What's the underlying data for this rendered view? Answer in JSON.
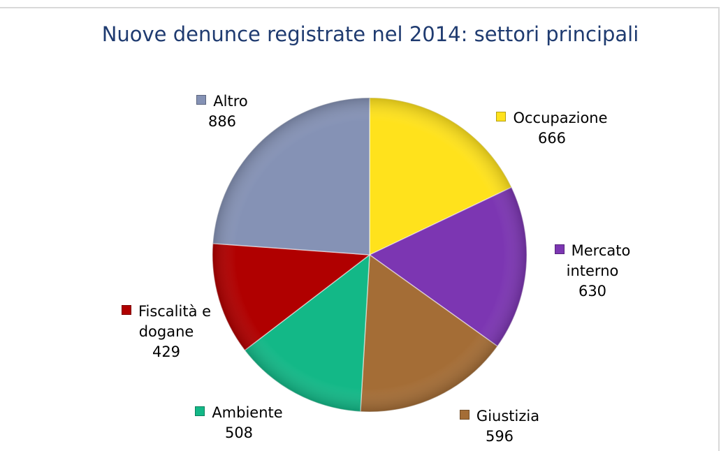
{
  "chart_data": {
    "type": "pie",
    "title": "Nuove denunce registrate nel 2014: settori principali",
    "categories": [
      "Occupazione",
      "Mercato interno",
      "Giustizia",
      "Ambiente",
      "Fiscalità e dogane",
      "Altro"
    ],
    "values": [
      666,
      630,
      596,
      508,
      429,
      886
    ],
    "colors": [
      "#ffe21c",
      "#7c36b2",
      "#a46d36",
      "#13b887",
      "#b00000",
      "#8592b5"
    ]
  }
}
